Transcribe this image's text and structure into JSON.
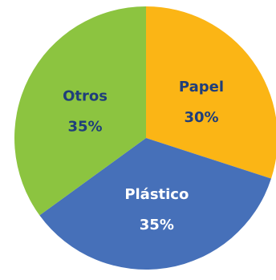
{
  "chart_data": {
    "type": "pie",
    "start_angle_deg": 0,
    "direction": "clockwise",
    "slices": [
      {
        "label": "Papel",
        "value": 30,
        "value_label": "30%",
        "color": "#FBB515",
        "text_color": "#1F3E7A"
      },
      {
        "label": "Plástico",
        "value": 35,
        "value_label": "35%",
        "color": "#4670B9",
        "text_color": "#FFFFFF"
      },
      {
        "label": "Otros",
        "value": 35,
        "value_label": "35%",
        "color": "#8CC440",
        "text_color": "#1F3E7A"
      }
    ]
  }
}
